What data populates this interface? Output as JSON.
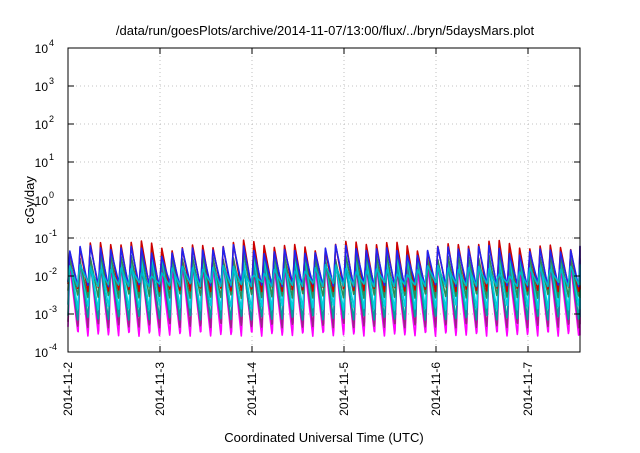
{
  "chart_data": {
    "type": "line",
    "title": "/data/run/goesPlots/archive/2014-11-07/13:00/flux/../bryn/5daysMars.plot",
    "xlabel": "Coordinated Universal Time (UTC)",
    "ylabel": "cGy/day",
    "yscale": "log",
    "ylim": [
      0.0001,
      10000
    ],
    "xlim": [
      "2014-11-02",
      "2014-11-07 13:00"
    ],
    "grid": true,
    "x_ticks": [
      "2014-11-2",
      "2014-11-3",
      "2014-11-4",
      "2014-11-5",
      "2014-11-6",
      "2014-11-7"
    ],
    "y_ticks": [
      {
        "value": 0.0001,
        "base": "10",
        "exp": "-4"
      },
      {
        "value": 0.001,
        "base": "10",
        "exp": "-3"
      },
      {
        "value": 0.01,
        "base": "10",
        "exp": "-2"
      },
      {
        "value": 0.1,
        "base": "10",
        "exp": "-1"
      },
      {
        "value": 1,
        "base": "10",
        "exp": "0"
      },
      {
        "value": 10,
        "base": "10",
        "exp": "1"
      },
      {
        "value": 100,
        "base": "10",
        "exp": "2"
      },
      {
        "value": 1000,
        "base": "10",
        "exp": "3"
      },
      {
        "value": 10000,
        "base": "10",
        "exp": "4"
      }
    ],
    "cycles_per_day": 9,
    "series": [
      {
        "color": "#ff00ff",
        "peak": 0.02,
        "trough": 0.0003
      },
      {
        "color": "#a0208b",
        "peak": 0.022,
        "trough": 0.0005
      },
      {
        "color": "#00a0a0",
        "peak": 0.025,
        "trough": 0.0008
      },
      {
        "color": "#00d0e0",
        "peak": 0.03,
        "trough": 0.0015
      },
      {
        "color": "#2e8b57",
        "peak": 0.035,
        "trough": 0.003
      },
      {
        "color": "#cc0000",
        "peak": 0.065,
        "trough": 0.0045
      },
      {
        "color": "#2222ee",
        "peak": 0.05,
        "trough": 0.006
      },
      {
        "color": "#00b8c8",
        "peak": 0.015,
        "trough": 0.006
      }
    ]
  }
}
